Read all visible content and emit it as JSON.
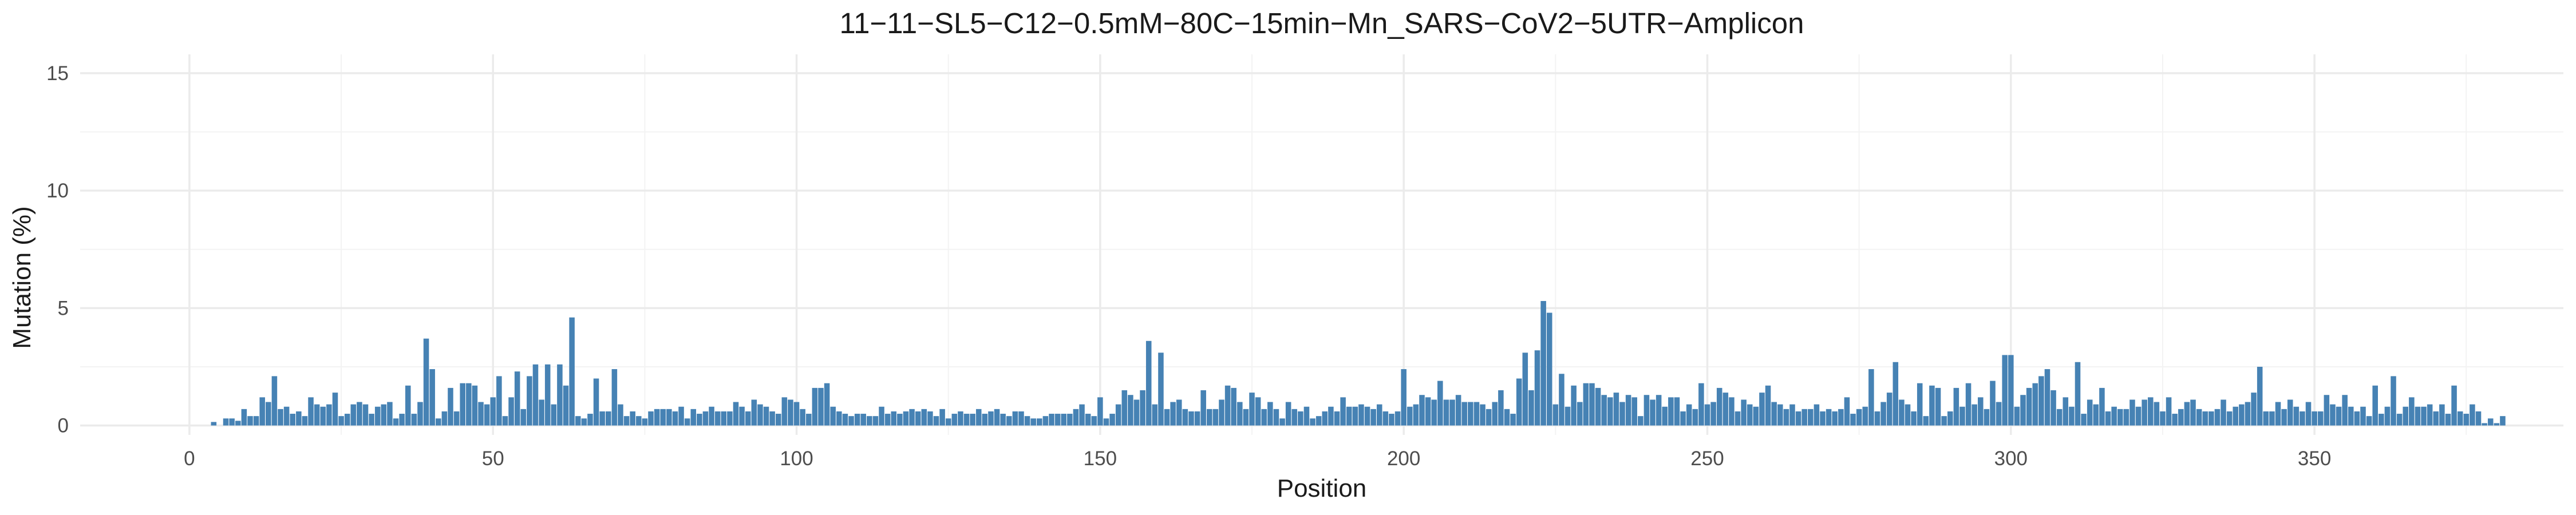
{
  "chart_data": {
    "type": "bar",
    "title": "11−11−SL5−C12−0.5mM−80C−15min−Mn_SARS−CoV2−5UTR−Amplicon",
    "xlabel": "Position",
    "ylabel": "Mutation (%)",
    "xlim": [
      -18,
      391
    ],
    "ylim": [
      -0.4,
      15.8
    ],
    "x_ticks": [
      0,
      50,
      100,
      150,
      200,
      250,
      300,
      350
    ],
    "y_ticks": [
      0,
      5,
      10,
      15
    ],
    "y_tick_labels": [
      "0",
      "5",
      "10",
      "15"
    ],
    "grid": true,
    "legend": "none",
    "bar_color": "#4682b4",
    "x_start": 4,
    "values": [
      0.15,
      0.0,
      0.3,
      0.3,
      0.2,
      0.7,
      0.4,
      0.4,
      1.2,
      1.0,
      2.1,
      0.7,
      0.8,
      0.5,
      0.6,
      0.4,
      1.2,
      0.9,
      0.8,
      0.9,
      1.4,
      0.4,
      0.5,
      0.9,
      1.0,
      0.9,
      0.5,
      0.8,
      0.9,
      1.0,
      0.3,
      0.5,
      1.7,
      0.5,
      1.0,
      3.7,
      2.4,
      0.3,
      0.6,
      1.6,
      0.6,
      1.8,
      1.8,
      1.7,
      1.0,
      0.9,
      1.2,
      2.1,
      0.4,
      1.2,
      2.3,
      0.7,
      2.1,
      2.6,
      1.1,
      2.6,
      0.9,
      2.6,
      1.7,
      4.6,
      0.4,
      0.3,
      0.5,
      2.0,
      0.6,
      0.6,
      2.4,
      0.9,
      0.4,
      0.6,
      0.4,
      0.3,
      0.6,
      0.7,
      0.7,
      0.7,
      0.6,
      0.8,
      0.3,
      0.7,
      0.5,
      0.6,
      0.8,
      0.6,
      0.6,
      0.6,
      1.0,
      0.8,
      0.6,
      1.1,
      0.9,
      0.8,
      0.6,
      0.5,
      1.2,
      1.1,
      1.0,
      0.7,
      0.5,
      1.6,
      1.6,
      1.8,
      0.8,
      0.6,
      0.5,
      0.4,
      0.5,
      0.5,
      0.4,
      0.4,
      0.8,
      0.5,
      0.6,
      0.5,
      0.6,
      0.7,
      0.6,
      0.7,
      0.6,
      0.4,
      0.7,
      0.3,
      0.5,
      0.6,
      0.5,
      0.5,
      0.7,
      0.5,
      0.6,
      0.7,
      0.5,
      0.4,
      0.6,
      0.6,
      0.4,
      0.3,
      0.3,
      0.4,
      0.5,
      0.5,
      0.5,
      0.5,
      0.7,
      0.9,
      0.5,
      0.4,
      1.2,
      0.3,
      0.5,
      0.9,
      1.5,
      1.3,
      1.1,
      1.5,
      3.6,
      0.9,
      3.1,
      0.7,
      1.0,
      1.1,
      0.7,
      0.6,
      0.6,
      1.5,
      0.7,
      0.7,
      1.1,
      1.7,
      1.6,
      1.0,
      0.7,
      1.4,
      1.2,
      0.7,
      1.0,
      0.7,
      0.3,
      1.0,
      0.7,
      0.6,
      0.8,
      0.3,
      0.4,
      0.6,
      0.8,
      0.6,
      1.2,
      0.8,
      0.8,
      0.9,
      0.8,
      0.7,
      0.9,
      0.6,
      0.5,
      0.6,
      2.4,
      0.8,
      0.9,
      1.3,
      1.2,
      1.1,
      1.9,
      1.1,
      1.1,
      1.3,
      1.0,
      1.0,
      1.0,
      0.9,
      0.7,
      1.0,
      1.5,
      0.7,
      0.5,
      2.0,
      3.1,
      1.5,
      3.2,
      5.3,
      4.8,
      0.9,
      2.2,
      0.8,
      1.7,
      1.0,
      1.8,
      1.8,
      1.6,
      1.3,
      1.2,
      1.4,
      1.0,
      1.3,
      1.2,
      0.4,
      1.3,
      1.1,
      1.3,
      0.8,
      1.2,
      1.2,
      0.6,
      0.9,
      0.7,
      1.8,
      0.9,
      1.0,
      1.6,
      1.4,
      1.2,
      0.6,
      1.1,
      0.9,
      0.8,
      1.4,
      1.7,
      1.0,
      0.9,
      0.7,
      0.9,
      0.6,
      0.7,
      0.7,
      0.9,
      0.6,
      0.7,
      0.6,
      0.7,
      1.2,
      0.5,
      0.7,
      0.8,
      2.4,
      0.6,
      1.0,
      1.4,
      2.7,
      1.1,
      0.9,
      0.6,
      1.8,
      0.4,
      1.7,
      1.6,
      0.4,
      0.6,
      1.6,
      0.8,
      1.8,
      0.9,
      1.2,
      0.7,
      1.9,
      1.0,
      3.0,
      3.0,
      0.8,
      1.3,
      1.6,
      1.8,
      2.1,
      2.4,
      1.5,
      0.7,
      1.2,
      0.8,
      2.7,
      0.5,
      1.1,
      0.9,
      1.6,
      0.6,
      0.8,
      0.7,
      0.7,
      1.1,
      0.8,
      1.1,
      1.2,
      1.0,
      0.6,
      1.2,
      0.5,
      0.7,
      1.0,
      1.1,
      0.7,
      0.6,
      0.6,
      0.7,
      1.1,
      0.6,
      0.8,
      0.9,
      1.0,
      1.4,
      2.5,
      0.6,
      0.6,
      1.0,
      0.7,
      1.1,
      0.8,
      0.6,
      1.0,
      0.6,
      0.6,
      1.3,
      0.9,
      0.8,
      1.3,
      0.8,
      0.6,
      0.8,
      0.4,
      1.7,
      0.5,
      0.8,
      2.1,
      0.5,
      0.8,
      1.2,
      0.8,
      0.8,
      0.9,
      0.6,
      0.9,
      0.5,
      1.7,
      0.6,
      0.5,
      0.9,
      0.6,
      0.1,
      0.3,
      0.1,
      0.4
    ]
  }
}
